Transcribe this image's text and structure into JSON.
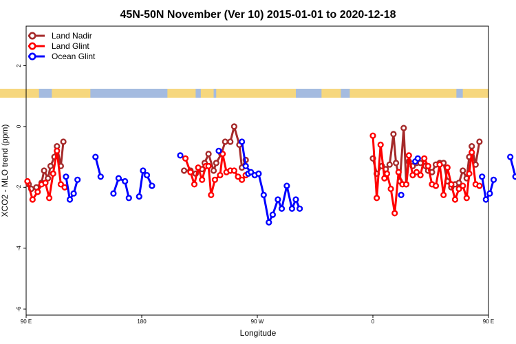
{
  "colors": {
    "land_nadir": "#a52a2a",
    "land_glint": "#ff0000",
    "ocean_glint": "#0000ff",
    "land_band": "#f6d77e",
    "ocean_band": "#a4bbe0"
  },
  "chart_data": {
    "type": "line",
    "title": "45N-50N November (Ver 10)   2015-01-01 to 2020-12-18",
    "xlabel": "Longitude",
    "ylabel": "XCO2 - MLO trend (ppm)",
    "xlim": [
      90,
      450
    ],
    "ylim": [
      -6.2,
      3.3
    ],
    "x_ticks": [
      {
        "value": 90,
        "label": "90 E"
      },
      {
        "value": 180,
        "label": "180"
      },
      {
        "value": 270,
        "label": "90 W"
      },
      {
        "value": 360,
        "label": "0"
      },
      {
        "value": 450,
        "label": "90 E"
      },
      {
        "value": 540,
        "label": "180"
      }
    ],
    "y_ticks": [
      {
        "value": 2,
        "label": "2"
      },
      {
        "value": 0,
        "label": "0"
      },
      {
        "value": -2,
        "label": "-2"
      },
      {
        "value": -4,
        "label": "-4"
      },
      {
        "value": -6,
        "label": "-6"
      }
    ],
    "legend": [
      "Land Nadir",
      "Land Glint",
      "Ocean Glint"
    ],
    "series": [
      {
        "name": "Land Nadir",
        "color": "#a52a2a",
        "segments": [
          [
            [
              92,
              -1.9
            ],
            [
              94,
              -2.05
            ],
            [
              98,
              -2.0
            ],
            [
              102,
              -1.85
            ],
            [
              104,
              -1.45
            ],
            [
              107,
              -1.7
            ],
            [
              109,
              -1.3
            ],
            [
              112,
              -1.0
            ],
            [
              114,
              -0.65
            ],
            [
              117,
              -1.3
            ],
            [
              119,
              -0.5
            ]
          ],
          [
            [
              213,
              -1.45
            ],
            [
              218,
              -1.45
            ],
            [
              222,
              -1.55
            ],
            [
              227,
              -1.4
            ],
            [
              229,
              -1.2
            ],
            [
              232,
              -0.9
            ],
            [
              236,
              -1.45
            ],
            [
              238,
              -1.2
            ],
            [
              242,
              -0.9
            ],
            [
              245,
              -0.5
            ],
            [
              249,
              -0.5
            ],
            [
              252,
              0.0
            ],
            [
              256,
              -0.6
            ],
            [
              258,
              -1.35
            ],
            [
              261,
              -1.1
            ]
          ],
          [
            [
              360,
              -1.05
            ],
            [
              363,
              -1.55
            ],
            [
              367,
              -1.3
            ],
            [
              370,
              -1.4
            ],
            [
              373,
              -1.25
            ],
            [
              376,
              -0.25
            ],
            [
              378,
              -1.2
            ],
            [
              381,
              -1.8
            ],
            [
              384,
              -0.05
            ],
            [
              386,
              -1.9
            ],
            [
              388,
              -1.15
            ],
            [
              391,
              -1.3
            ],
            [
              394,
              -1.2
            ],
            [
              397,
              -1.2
            ],
            [
              401,
              -1.3
            ],
            [
              403,
              -1.45
            ],
            [
              406,
              -1.5
            ],
            [
              409,
              -1.25
            ],
            [
              412,
              -1.2
            ],
            [
              415,
              -1.2
            ],
            [
              418,
              -1.8
            ],
            [
              421,
              -2.0
            ],
            [
              424,
              -1.9
            ],
            [
              427,
              -1.85
            ],
            [
              430,
              -1.45
            ],
            [
              433,
              -1.7
            ],
            [
              435,
              -1.0
            ],
            [
              437,
              -0.65
            ],
            [
              440,
              -1.25
            ],
            [
              443,
              -0.5
            ]
          ]
        ]
      },
      {
        "name": "Land Glint",
        "color": "#ff0000",
        "segments": [
          [
            [
              91,
              -1.8
            ],
            [
              95,
              -2.4
            ],
            [
              99,
              -2.15
            ],
            [
              102,
              -1.9
            ],
            [
              105,
              -1.85
            ],
            [
              108,
              -2.35
            ],
            [
              111,
              -1.55
            ],
            [
              114,
              -0.8
            ],
            [
              117,
              -1.9
            ],
            [
              120,
              -2.0
            ]
          ],
          [
            [
              214,
              -1.05
            ],
            [
              218,
              -1.5
            ],
            [
              221,
              -1.9
            ],
            [
              224,
              -1.35
            ],
            [
              227,
              -1.75
            ],
            [
              230,
              -1.3
            ],
            [
              232,
              -1.3
            ],
            [
              234,
              -2.25
            ],
            [
              237,
              -1.75
            ],
            [
              241,
              -1.6
            ],
            [
              243,
              -0.9
            ],
            [
              246,
              -1.5
            ],
            [
              249,
              -1.45
            ],
            [
              252,
              -1.45
            ],
            [
              255,
              -1.65
            ],
            [
              258,
              -1.75
            ],
            [
              261,
              -1.6
            ]
          ],
          [
            [
              360,
              -0.3
            ],
            [
              363,
              -2.35
            ],
            [
              366,
              -0.6
            ],
            [
              369,
              -1.7
            ],
            [
              371,
              -1.55
            ],
            [
              374,
              -2.05
            ],
            [
              377,
              -2.85
            ],
            [
              380,
              -1.5
            ],
            [
              383,
              -1.9
            ],
            [
              386,
              -1.9
            ],
            [
              388,
              -0.95
            ],
            [
              391,
              -1.6
            ],
            [
              394,
              -1.5
            ],
            [
              397,
              -1.6
            ],
            [
              400,
              -1.05
            ],
            [
              403,
              -1.3
            ],
            [
              406,
              -1.9
            ],
            [
              409,
              -1.95
            ],
            [
              412,
              -1.25
            ],
            [
              415,
              -2.25
            ],
            [
              418,
              -1.35
            ],
            [
              421,
              -1.9
            ],
            [
              424,
              -2.4
            ],
            [
              427,
              -2.05
            ],
            [
              430,
              -1.95
            ],
            [
              433,
              -2.35
            ],
            [
              435,
              -1.55
            ],
            [
              437,
              -0.85
            ],
            [
              440,
              -1.9
            ],
            [
              443,
              -1.95
            ]
          ]
        ]
      },
      {
        "name": "Ocean Glint",
        "color": "#0000ff",
        "segments": [
          [
            [
              121,
              -1.65
            ],
            [
              124,
              -2.4
            ],
            [
              127,
              -2.2
            ],
            [
              130,
              -1.75
            ]
          ],
          [
            [
              144,
              -1.0
            ],
            [
              148,
              -1.65
            ]
          ],
          [
            [
              158,
              -2.2
            ],
            [
              162,
              -1.7
            ],
            [
              167,
              -1.8
            ],
            [
              170,
              -2.35
            ]
          ],
          [
            [
              178,
              -2.3
            ],
            [
              181,
              -1.45
            ],
            [
              184,
              -1.6
            ],
            [
              188,
              -1.95
            ]
          ],
          [
            [
              210,
              -0.95
            ]
          ],
          [
            [
              268,
              -1.6
            ],
            [
              271,
              -1.55
            ],
            [
              275,
              -2.25
            ],
            [
              279,
              -3.15
            ],
            [
              282,
              -2.9
            ],
            [
              286,
              -2.4
            ],
            [
              289,
              -2.7
            ],
            [
              293,
              -1.95
            ],
            [
              297,
              -2.7
            ],
            [
              300,
              -2.4
            ],
            [
              303,
              -2.7
            ]
          ],
          [
            [
              263,
              -1.55
            ],
            [
              265,
              -1.5
            ],
            [
              261,
              -1.3
            ],
            [
              258,
              -0.5
            ]
          ],
          [
            [
              240,
              -0.8
            ]
          ],
          [
            [
              382,
              -2.25
            ]
          ],
          [
            [
              393,
              -1.15
            ],
            [
              395,
              -1.05
            ]
          ],
          [
            [
              445,
              -1.65
            ],
            [
              448,
              -2.4
            ],
            [
              451,
              -2.2
            ],
            [
              454,
              -1.75
            ]
          ],
          [
            [
              467,
              -1.0
            ],
            [
              471,
              -1.65
            ]
          ]
        ]
      }
    ]
  }
}
